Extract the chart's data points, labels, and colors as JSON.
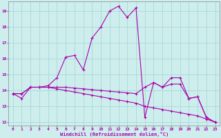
{
  "xlabel": "Windchill (Refroidissement éolien,°C)",
  "bg_color": "#cdeeed",
  "grid_color": "#aad8d8",
  "line_color": "#aa00aa",
  "xlim": [
    -0.5,
    23.5
  ],
  "ylim": [
    11.8,
    19.6
  ],
  "yticks": [
    12,
    13,
    14,
    15,
    16,
    17,
    18,
    19
  ],
  "xticks": [
    0,
    1,
    2,
    3,
    4,
    5,
    6,
    7,
    8,
    9,
    10,
    11,
    12,
    13,
    14,
    15,
    16,
    17,
    18,
    19,
    20,
    21,
    22,
    23
  ],
  "line1_x": [
    0,
    1,
    2,
    3,
    4,
    5,
    6,
    7,
    8,
    9,
    10,
    11,
    12,
    13,
    14,
    15,
    16,
    17,
    18,
    19,
    20,
    21,
    22,
    23
  ],
  "line1_y": [
    13.8,
    13.5,
    14.2,
    14.2,
    14.3,
    14.8,
    16.1,
    16.2,
    15.3,
    17.3,
    18.0,
    19.0,
    19.3,
    18.6,
    19.2,
    12.3,
    14.5,
    14.2,
    14.8,
    14.8,
    13.5,
    13.6,
    12.3,
    12.0
  ],
  "line2_x": [
    0,
    1,
    2,
    3,
    4,
    5,
    6,
    7,
    8,
    9,
    10,
    11,
    12,
    13,
    14,
    15,
    16,
    17,
    18,
    19,
    20,
    21,
    22,
    23
  ],
  "line2_y": [
    13.8,
    13.8,
    14.2,
    14.2,
    14.2,
    14.2,
    14.2,
    14.15,
    14.1,
    14.05,
    14.0,
    13.95,
    13.9,
    13.85,
    13.8,
    14.2,
    14.5,
    14.2,
    14.4,
    14.4,
    13.5,
    13.6,
    12.3,
    12.0
  ],
  "line3_x": [
    0,
    1,
    2,
    3,
    4,
    5,
    6,
    7,
    8,
    9,
    10,
    11,
    12,
    13,
    14,
    15,
    16,
    17,
    18,
    19,
    20,
    21,
    22,
    23
  ],
  "line3_y": [
    13.8,
    13.8,
    14.2,
    14.2,
    14.2,
    14.1,
    14.0,
    13.9,
    13.8,
    13.7,
    13.6,
    13.5,
    13.4,
    13.3,
    13.2,
    13.0,
    12.9,
    12.8,
    12.7,
    12.6,
    12.5,
    12.4,
    12.2,
    12.0
  ]
}
